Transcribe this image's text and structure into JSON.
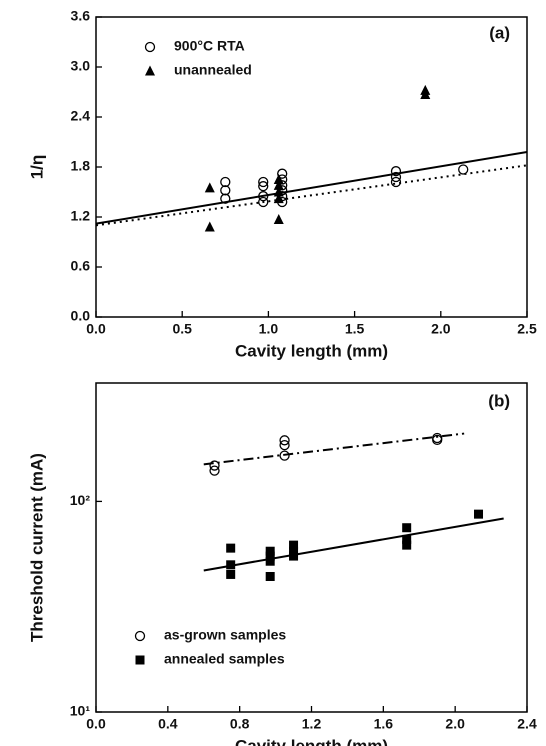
{
  "chart_data": [
    {
      "type": "scatter",
      "annotation": "(a)",
      "x_label": "Cavity length (mm)",
      "y_label": "1/η",
      "xlim": [
        0,
        2.5
      ],
      "xticks": [
        {
          "value": 0,
          "label": "0.0"
        },
        0.5,
        {
          "value": 1,
          "label": "1.0"
        },
        1.5,
        {
          "value": 2,
          "label": "2.0"
        },
        2.5
      ],
      "ylim": [
        0,
        3.6
      ],
      "yticks": [
        {
          "value": 0,
          "label": "0.0"
        },
        0.6,
        1.2,
        1.8,
        2.4,
        {
          "value": 3,
          "label": "3.0"
        },
        3.6
      ],
      "log": false,
      "series": [
        {
          "name": "900°C RTA",
          "color": "#000",
          "marker": "circle",
          "x": [
            0.75,
            0.75,
            0.75,
            0.97,
            0.97,
            0.97,
            0.97,
            1.08,
            1.08,
            1.08,
            1.08,
            1.08,
            1.08,
            1.74,
            1.74,
            1.74,
            2.13
          ],
          "values": [
            1.62,
            1.52,
            1.42,
            1.62,
            1.57,
            1.45,
            1.38,
            1.72,
            1.65,
            1.58,
            1.52,
            1.45,
            1.38,
            1.75,
            1.68,
            1.62,
            1.77
          ]
        },
        {
          "name": "unannealed",
          "color": "#000",
          "marker": "triangle",
          "x": [
            0.66,
            0.66,
            1.06,
            1.06,
            1.06,
            1.06,
            1.06,
            1.91,
            1.91
          ],
          "values": [
            1.55,
            1.08,
            1.65,
            1.58,
            1.5,
            1.42,
            1.17,
            2.72,
            2.67
          ]
        }
      ],
      "lines": [
        {
          "x": [
            0,
            2.5
          ],
          "y": [
            1.12,
            1.98
          ],
          "dash": "solid"
        },
        {
          "x": [
            0,
            2.5
          ],
          "y": [
            1.1,
            1.82
          ],
          "dash": "dotted"
        }
      ]
    },
    {
      "type": "scatter",
      "annotation": "(b)",
      "x_label": "Cavity length (mm)",
      "y_label": "Threshold current (mA)",
      "xlim": [
        0,
        2.4
      ],
      "xticks": [
        {
          "value": 0,
          "label": "0.0"
        },
        0.4,
        0.8,
        1.2,
        1.6,
        {
          "value": 2,
          "label": "2.0"
        },
        2.4
      ],
      "ylim": [
        10,
        365
      ],
      "yticks": [
        {
          "value": 10,
          "label": "10¹"
        },
        {
          "value": 100,
          "label": "10²"
        }
      ],
      "log": true,
      "series": [
        {
          "name": "as-grown samples",
          "color": "#000",
          "marker": "circle",
          "x": [
            0.66,
            0.66,
            1.05,
            1.05,
            1.05,
            1.9,
            1.9
          ],
          "values": [
            148,
            140,
            195,
            185,
            165,
            200,
            196
          ]
        },
        {
          "name": "annealed samples",
          "color": "#000",
          "marker": "square",
          "x": [
            0.75,
            0.75,
            0.75,
            0.97,
            0.97,
            0.97,
            0.97,
            1.1,
            1.1,
            1.1,
            1.73,
            1.73,
            1.73,
            2.13
          ],
          "values": [
            60,
            50,
            45,
            58,
            55,
            52,
            44,
            62,
            58,
            55,
            75,
            66,
            62,
            87
          ]
        }
      ],
      "lines": [
        {
          "x": [
            0.6,
            2.05
          ],
          "y": [
            150,
            210
          ],
          "dash": "dashdot"
        },
        {
          "x": [
            0.6,
            2.27
          ],
          "y": [
            47,
            83
          ],
          "dash": "solid"
        }
      ]
    }
  ]
}
